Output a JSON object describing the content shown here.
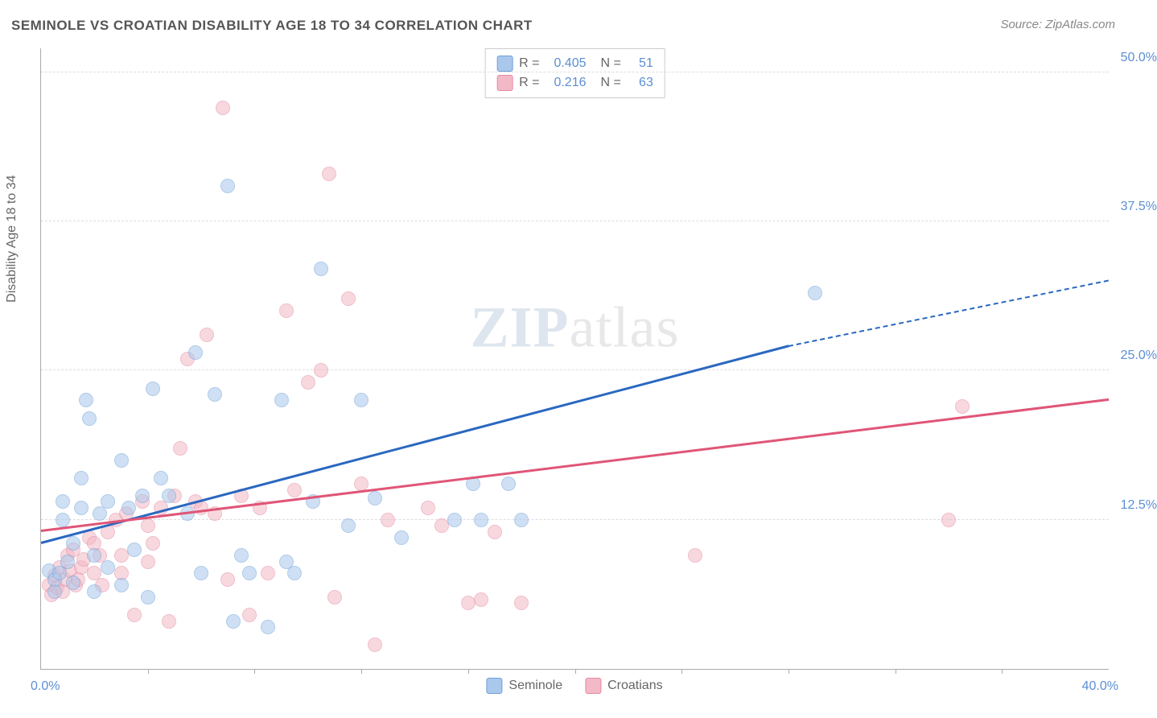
{
  "title": "SEMINOLE VS CROATIAN DISABILITY AGE 18 TO 34 CORRELATION CHART",
  "source": "Source: ZipAtlas.com",
  "y_axis_title": "Disability Age 18 to 34",
  "watermark_zip": "ZIP",
  "watermark_atlas": "atlas",
  "chart": {
    "type": "scatter",
    "xlim": [
      0,
      40
    ],
    "ylim": [
      0,
      52
    ],
    "x_label_min": "0.0%",
    "x_label_max": "40.0%",
    "x_ticks": [
      4,
      8,
      12,
      16,
      20,
      24,
      28,
      32,
      36
    ],
    "y_gridlines": [
      {
        "v": 12.5,
        "label": "12.5%"
      },
      {
        "v": 25.0,
        "label": "25.0%"
      },
      {
        "v": 37.5,
        "label": "37.5%"
      },
      {
        "v": 50.0,
        "label": "50.0%"
      }
    ],
    "point_radius": 9,
    "point_opacity": 0.55,
    "background_color": "#ffffff",
    "series": [
      {
        "name": "Seminole",
        "color_fill": "#a9c8ec",
        "color_stroke": "#6fa0d8",
        "legend_swatch_fill": "#a9c8ec",
        "legend_swatch_stroke": "#6fa0d8",
        "r_label": "R =",
        "r_value": "0.405",
        "n_label": "N =",
        "n_value": "51",
        "trend": {
          "x1": 0,
          "y1": 10.5,
          "x2": 28,
          "y2": 27.0,
          "color": "#2a68c0",
          "width": 2.5,
          "dash_from_x": 28,
          "dash_to_x": 40,
          "dash_to_y": 32.5
        },
        "points": [
          [
            0.3,
            8.2
          ],
          [
            0.5,
            6.5
          ],
          [
            0.5,
            7.5
          ],
          [
            0.7,
            8.0
          ],
          [
            0.8,
            12.5
          ],
          [
            0.8,
            14.0
          ],
          [
            1.0,
            9.0
          ],
          [
            1.2,
            10.5
          ],
          [
            1.2,
            7.2
          ],
          [
            1.5,
            16.0
          ],
          [
            1.5,
            13.5
          ],
          [
            1.7,
            22.5
          ],
          [
            1.8,
            21.0
          ],
          [
            2.0,
            9.5
          ],
          [
            2.2,
            13.0
          ],
          [
            2.5,
            14.0
          ],
          [
            2.5,
            8.5
          ],
          [
            3.0,
            17.5
          ],
          [
            3.3,
            13.5
          ],
          [
            3.5,
            10.0
          ],
          [
            3.8,
            14.5
          ],
          [
            4.2,
            23.5
          ],
          [
            4.5,
            16.0
          ],
          [
            4.8,
            14.5
          ],
          [
            5.5,
            13.0
          ],
          [
            5.8,
            26.5
          ],
          [
            6.0,
            8.0
          ],
          [
            6.5,
            23.0
          ],
          [
            7.0,
            40.5
          ],
          [
            7.2,
            4.0
          ],
          [
            7.5,
            9.5
          ],
          [
            7.8,
            8.0
          ],
          [
            8.5,
            3.5
          ],
          [
            9.0,
            22.5
          ],
          [
            9.2,
            9.0
          ],
          [
            9.5,
            8.0
          ],
          [
            10.2,
            14.0
          ],
          [
            10.5,
            33.5
          ],
          [
            11.5,
            12.0
          ],
          [
            12.0,
            22.5
          ],
          [
            12.5,
            14.3
          ],
          [
            13.5,
            11.0
          ],
          [
            15.5,
            12.5
          ],
          [
            16.2,
            15.5
          ],
          [
            16.5,
            12.5
          ],
          [
            17.5,
            15.5
          ],
          [
            18.0,
            12.5
          ],
          [
            29.0,
            31.5
          ],
          [
            3.0,
            7.0
          ],
          [
            4.0,
            6.0
          ],
          [
            2.0,
            6.5
          ]
        ]
      },
      {
        "name": "Croatians",
        "color_fill": "#f3b9c6",
        "color_stroke": "#e58aa2",
        "legend_swatch_fill": "#f3b9c6",
        "legend_swatch_stroke": "#e58aa2",
        "r_label": "R =",
        "r_value": "0.216",
        "n_label": "N =",
        "n_value": "63",
        "trend": {
          "x1": 0,
          "y1": 11.5,
          "x2": 40,
          "y2": 22.5,
          "color": "#e05577",
          "width": 2.5
        },
        "points": [
          [
            0.3,
            7.0
          ],
          [
            0.4,
            6.2
          ],
          [
            0.5,
            7.8
          ],
          [
            0.6,
            6.8
          ],
          [
            0.7,
            8.5
          ],
          [
            0.8,
            6.5
          ],
          [
            0.9,
            7.5
          ],
          [
            1.0,
            9.5
          ],
          [
            1.1,
            8.2
          ],
          [
            1.2,
            10.0
          ],
          [
            1.3,
            7.0
          ],
          [
            1.5,
            8.5
          ],
          [
            1.6,
            9.2
          ],
          [
            1.8,
            11.0
          ],
          [
            2.0,
            10.5
          ],
          [
            2.0,
            8.0
          ],
          [
            2.2,
            9.5
          ],
          [
            2.5,
            11.5
          ],
          [
            2.8,
            12.5
          ],
          [
            3.0,
            9.5
          ],
          [
            3.2,
            13.0
          ],
          [
            3.5,
            4.5
          ],
          [
            3.8,
            14.0
          ],
          [
            4.0,
            12.0
          ],
          [
            4.2,
            10.5
          ],
          [
            4.5,
            13.5
          ],
          [
            4.8,
            4.0
          ],
          [
            5.0,
            14.5
          ],
          [
            5.2,
            18.5
          ],
          [
            5.5,
            26.0
          ],
          [
            5.8,
            14.0
          ],
          [
            6.0,
            13.5
          ],
          [
            6.2,
            28.0
          ],
          [
            6.5,
            13.0
          ],
          [
            6.8,
            47.0
          ],
          [
            7.0,
            7.5
          ],
          [
            7.5,
            14.5
          ],
          [
            7.8,
            4.5
          ],
          [
            8.2,
            13.5
          ],
          [
            8.5,
            8.0
          ],
          [
            9.2,
            30.0
          ],
          [
            9.5,
            15.0
          ],
          [
            10.0,
            24.0
          ],
          [
            10.5,
            25.0
          ],
          [
            10.8,
            41.5
          ],
          [
            11.0,
            6.0
          ],
          [
            11.5,
            31.0
          ],
          [
            12.0,
            15.5
          ],
          [
            12.5,
            2.0
          ],
          [
            13.0,
            12.5
          ],
          [
            14.5,
            13.5
          ],
          [
            15.0,
            12.0
          ],
          [
            16.0,
            5.5
          ],
          [
            16.5,
            5.8
          ],
          [
            17.0,
            11.5
          ],
          [
            18.0,
            5.5
          ],
          [
            24.5,
            9.5
          ],
          [
            34.0,
            12.5
          ],
          [
            34.5,
            22.0
          ],
          [
            1.4,
            7.5
          ],
          [
            2.3,
            7.0
          ],
          [
            3.0,
            8.0
          ],
          [
            4.0,
            9.0
          ]
        ]
      }
    ]
  },
  "legend_bottom": [
    {
      "label": "Seminole",
      "fill": "#a9c8ec",
      "stroke": "#6fa0d8"
    },
    {
      "label": "Croatians",
      "fill": "#f3b9c6",
      "stroke": "#e58aa2"
    }
  ]
}
